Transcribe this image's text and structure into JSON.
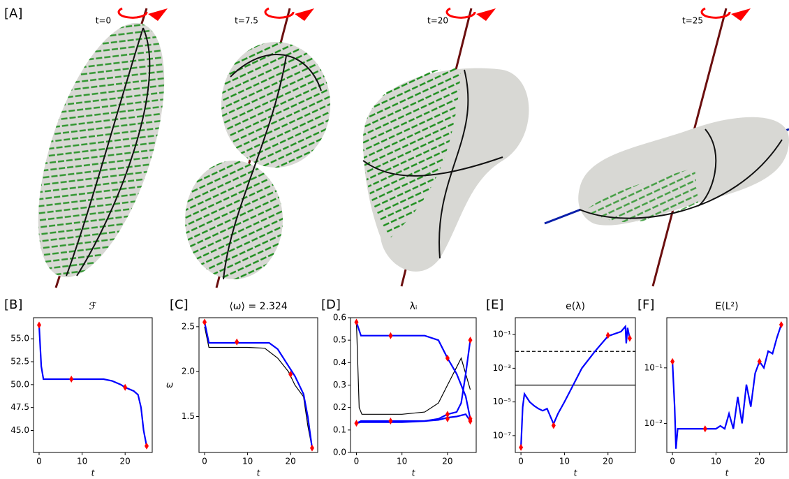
{
  "panel_a": {
    "label": "[A]",
    "time_labels": [
      "t=0",
      "t=7.5",
      "t=20",
      "t=25"
    ]
  },
  "chart_data": [
    {
      "type": "line",
      "panel_label": "[B]",
      "title": "ℱ",
      "x_label": "t",
      "xlim": [
        -1.3,
        26.3
      ],
      "xticks": [
        0,
        10,
        20
      ],
      "ylim": [
        42.6,
        57.3
      ],
      "log_y": false,
      "yticks": [
        {
          "value": 45,
          "label": "45.0"
        },
        {
          "value": 47.5,
          "label": "47.5"
        },
        {
          "value": 50,
          "label": "50.0"
        },
        {
          "value": 52.5,
          "label": "52.5"
        },
        {
          "value": 55,
          "label": "55.0"
        }
      ],
      "series": [
        {
          "color": "#0000ff",
          "marker": "none",
          "x": [
            0,
            0.5,
            1,
            5,
            10,
            15,
            17,
            19,
            20,
            22,
            23,
            23.7,
            24.3,
            25
          ],
          "values": [
            56.5,
            52,
            50.6,
            50.6,
            50.6,
            50.6,
            50.4,
            50,
            49.7,
            49.3,
            48.9,
            47.5,
            45,
            43.3
          ]
        },
        {
          "color": "#ff0000",
          "marker": "diamond",
          "x": [
            0,
            7.5,
            20,
            25
          ],
          "values": [
            56.5,
            50.6,
            49.7,
            43.3
          ]
        }
      ]
    },
    {
      "type": "line",
      "panel_label": "[C]",
      "title": "⟨ω⟩ = 2.324",
      "x_label": "t",
      "y_label": "ω",
      "xlim": [
        -1.3,
        26.3
      ],
      "xticks": [
        0,
        10,
        20
      ],
      "ylim": [
        1.1,
        2.6
      ],
      "log_y": false,
      "yticks": [
        {
          "value": 1.5,
          "label": "1.5"
        },
        {
          "value": 2,
          "label": "2.0"
        },
        {
          "value": 2.5,
          "label": "2.5"
        }
      ],
      "series": [
        {
          "color": "#000000",
          "marker": "none",
          "x": [
            0,
            1,
            5,
            10,
            14,
            17,
            19.5,
            21,
            23,
            24,
            25
          ],
          "values": [
            2.5,
            2.27,
            2.27,
            2.27,
            2.26,
            2.15,
            2,
            1.85,
            1.72,
            1.4,
            1.15
          ]
        },
        {
          "color": "#0000ff",
          "marker": "none",
          "x": [
            0,
            1,
            5,
            10,
            15,
            17,
            19,
            21,
            23,
            24,
            25
          ],
          "values": [
            2.55,
            2.32,
            2.32,
            2.32,
            2.32,
            2.25,
            2.1,
            1.95,
            1.75,
            1.5,
            1.15
          ]
        },
        {
          "color": "#ff0000",
          "marker": "diamond",
          "x": [
            0,
            7.5,
            20,
            25
          ],
          "values": [
            2.55,
            2.33,
            1.97,
            1.15
          ]
        }
      ]
    },
    {
      "type": "line",
      "panel_label": "[D]",
      "title": "λᵢ",
      "x_label": "t",
      "xlim": [
        -1.3,
        26.3
      ],
      "xticks": [
        0,
        10,
        20
      ],
      "ylim": [
        0,
        0.6
      ],
      "log_y": false,
      "yticks": [
        {
          "value": 0,
          "label": "0.0"
        },
        {
          "value": 0.1,
          "label": "0.1"
        },
        {
          "value": 0.2,
          "label": "0.2"
        },
        {
          "value": 0.3,
          "label": "0.3"
        },
        {
          "value": 0.4,
          "label": "0.4"
        },
        {
          "value": 0.5,
          "label": "0.5"
        },
        {
          "value": 0.6,
          "label": "0.6"
        }
      ],
      "series": [
        {
          "color": "#000000",
          "marker": "none",
          "x": [
            0,
            0.6,
            1.2,
            5,
            10,
            15,
            18,
            20,
            22,
            23,
            24,
            25
          ],
          "values": [
            0.58,
            0.2,
            0.17,
            0.17,
            0.17,
            0.18,
            0.22,
            0.3,
            0.38,
            0.42,
            0.35,
            0.28
          ]
        },
        {
          "color": "#0000ff",
          "marker": "none",
          "x": [
            0,
            1,
            5,
            10,
            15,
            18,
            20,
            22,
            24,
            25
          ],
          "values": [
            0.58,
            0.52,
            0.52,
            0.52,
            0.52,
            0.5,
            0.42,
            0.35,
            0.25,
            0.15
          ]
        },
        {
          "color": "#0000ff",
          "marker": "none",
          "x": [
            0,
            1,
            5,
            10,
            15,
            18,
            20,
            22,
            23,
            24,
            25
          ],
          "values": [
            0.13,
            0.14,
            0.14,
            0.14,
            0.14,
            0.15,
            0.17,
            0.18,
            0.22,
            0.35,
            0.5
          ]
        },
        {
          "color": "#0000ff",
          "marker": "none",
          "x": [
            0,
            1,
            5,
            10,
            15,
            18,
            20,
            22,
            24,
            25
          ],
          "values": [
            0.13,
            0.135,
            0.135,
            0.135,
            0.14,
            0.145,
            0.155,
            0.16,
            0.17,
            0.14
          ]
        },
        {
          "color": "#ff0000",
          "marker": "diamond",
          "x": [
            0,
            0,
            7.5,
            7.5,
            20,
            20,
            20,
            25,
            25,
            25
          ],
          "values": [
            0.58,
            0.13,
            0.52,
            0.14,
            0.42,
            0.17,
            0.15,
            0.5,
            0.15,
            0.14
          ]
        }
      ]
    },
    {
      "type": "line",
      "panel_label": "[E]",
      "title": "e(λ)",
      "x_label": "t",
      "xlim": [
        -1.3,
        26.3
      ],
      "xticks": [
        0,
        10,
        20
      ],
      "ylim": [
        1e-08,
        1
      ],
      "log_y": true,
      "yticks": [
        {
          "value": 1e-07,
          "label": "10⁻⁷"
        },
        {
          "value": 1e-05,
          "label": "10⁻⁵"
        },
        {
          "value": 0.001,
          "label": "10⁻³"
        },
        {
          "value": 0.1,
          "label": "10⁻¹"
        }
      ],
      "hlines": [
        {
          "value": 0.01,
          "style": "dashed"
        },
        {
          "value": 0.0001,
          "style": "solid"
        }
      ],
      "series": [
        {
          "color": "#0000ff",
          "marker": "none",
          "x": [
            0,
            0.4,
            0.8,
            2,
            3,
            4,
            5,
            6,
            6.5,
            7,
            7.5,
            8.5,
            10,
            12,
            14,
            17,
            20,
            23,
            24,
            24.2,
            24.5,
            25
          ],
          "values": [
            2e-08,
            5e-06,
            3e-05,
            1e-05,
            6e-06,
            4e-06,
            3e-06,
            4e-06,
            2e-06,
            1e-06,
            5e-07,
            2e-06,
            1e-05,
            0.0001,
            0.001,
            0.01,
            0.08,
            0.15,
            0.3,
            0.03,
            0.25,
            0.06
          ]
        },
        {
          "color": "#ff0000",
          "marker": "diamond",
          "x": [
            0,
            7.5,
            20,
            25
          ],
          "values": [
            2e-08,
            4e-07,
            0.09,
            0.06
          ]
        }
      ]
    },
    {
      "type": "line",
      "panel_label": "[F]",
      "title": "E(L²)",
      "x_label": "t",
      "xlim": [
        -1.3,
        26.3
      ],
      "xticks": [
        0,
        10,
        20
      ],
      "ylim": [
        0.003,
        0.8
      ],
      "log_y": true,
      "yticks": [
        {
          "value": 0.01,
          "label": "10⁻²"
        },
        {
          "value": 0.1,
          "label": "10⁻¹"
        }
      ],
      "series": [
        {
          "color": "#0000ff",
          "marker": "none",
          "x": [
            0,
            0.5,
            0.8,
            1.2,
            5,
            10,
            11,
            12,
            13,
            14,
            15,
            16,
            17,
            18,
            19,
            20,
            21,
            22,
            23,
            24,
            25
          ],
          "values": [
            0.13,
            0.02,
            0.0035,
            0.008,
            0.008,
            0.008,
            0.009,
            0.008,
            0.015,
            0.008,
            0.03,
            0.01,
            0.05,
            0.02,
            0.08,
            0.13,
            0.1,
            0.2,
            0.18,
            0.35,
            0.6
          ]
        },
        {
          "color": "#ff0000",
          "marker": "diamond",
          "x": [
            0,
            7.5,
            20,
            25
          ],
          "values": [
            0.13,
            0.008,
            0.13,
            0.6
          ]
        }
      ]
    }
  ]
}
